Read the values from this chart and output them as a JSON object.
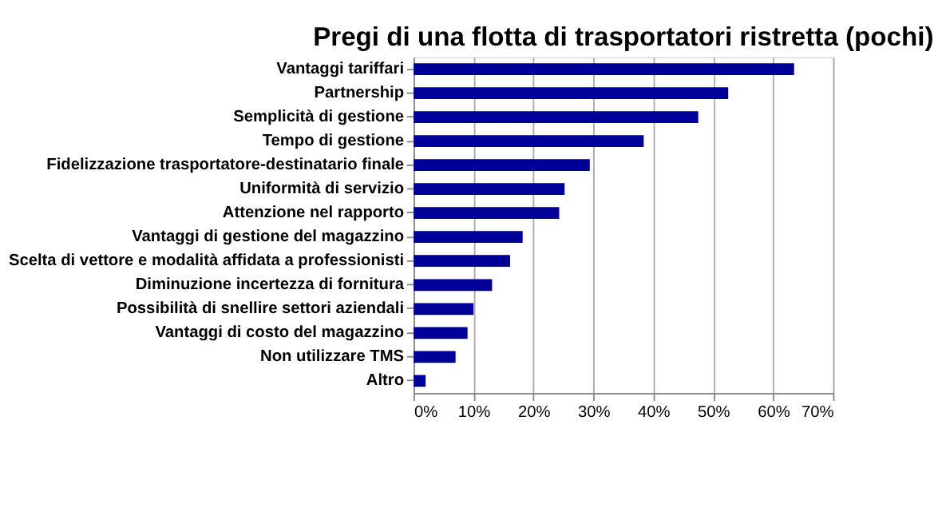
{
  "chart_data": {
    "type": "bar",
    "orientation": "horizontal",
    "title": "Pregi di una flotta di trasportatori ristretta (pochi)",
    "categories": [
      "Vantaggi tariffari",
      "Partnership",
      "Semplicità di gestione",
      "Tempo di gestione",
      "Fidelizzazione trasportatore-destinatario finale",
      "Uniformità di servizio",
      "Attenzione nel rapporto",
      "Vantaggi di gestione del magazzino",
      "Scelta di vettore e modalità affidata a professionisti",
      "Diminuzione incertezza di fornitura",
      "Possibilità di snellire settori aziendali",
      "Vantaggi di costo del magazzino",
      "Non utilizzare TMS",
      "Altro"
    ],
    "values": [
      63.5,
      52.5,
      47.5,
      38.4,
      29.4,
      25.2,
      24.3,
      18.2,
      16.1,
      13.1,
      10,
      9,
      7,
      2
    ],
    "color": "#000099",
    "xlim": [
      0,
      70
    ],
    "xticks": [
      {
        "value": 0,
        "label": "0%"
      },
      {
        "value": 10,
        "label": "10%"
      },
      {
        "value": 20,
        "label": "20%"
      },
      {
        "value": 30,
        "label": "30%"
      },
      {
        "value": 40,
        "label": "40%"
      },
      {
        "value": 50,
        "label": "50%"
      },
      {
        "value": 60,
        "label": "60%"
      },
      {
        "value": 70,
        "label": "70%"
      }
    ],
    "grid": "x"
  }
}
